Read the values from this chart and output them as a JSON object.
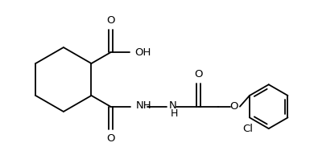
{
  "bg_color": "#ffffff",
  "line_color": "#000000",
  "lw": 1.3,
  "fs": 9.5,
  "xlim": [
    0,
    10
  ],
  "ylim": [
    0,
    5.2
  ]
}
